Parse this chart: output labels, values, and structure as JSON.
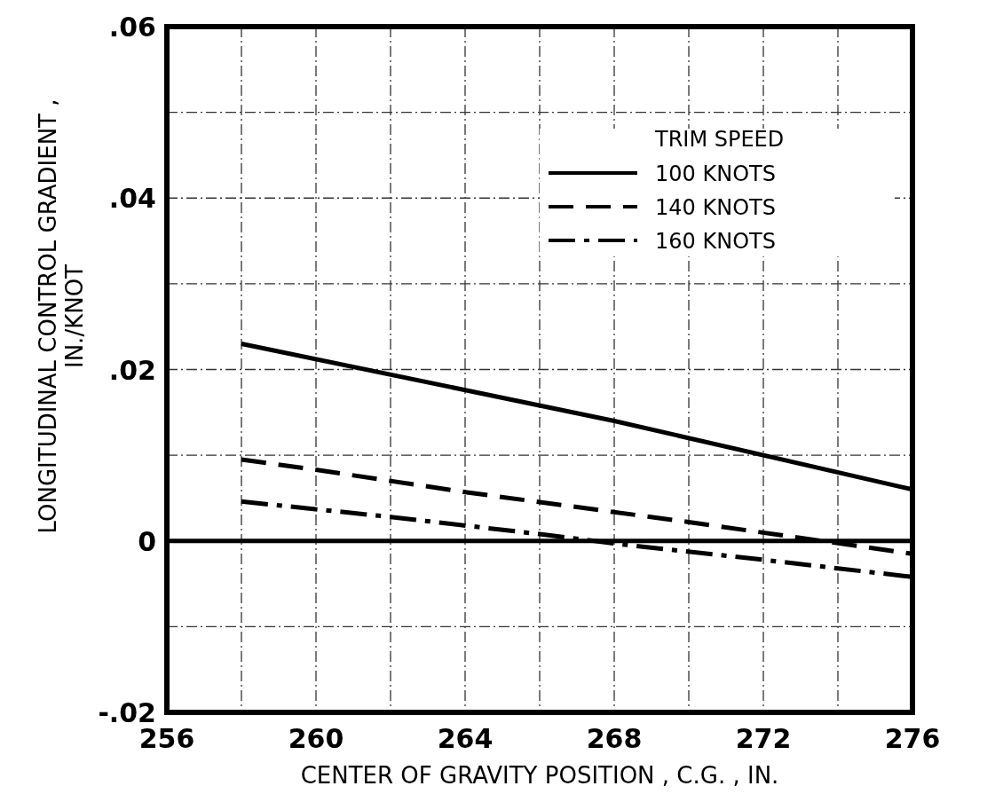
{
  "chart_data": {
    "type": "line",
    "xlabel": "CENTER OF GRAVITY POSITION , C.G. , IN.",
    "ylabel": "LONGITUDINAL CONTROL GRADIENT ,\nIN./KNOT",
    "legend_title": "TRIM SPEED",
    "legend": "top right",
    "grid": true,
    "xlim": [
      256,
      276
    ],
    "xticks": [
      256,
      {
        "value": 258,
        "label": null
      },
      260,
      {
        "value": 262,
        "label": null
      },
      264,
      {
        "value": 266,
        "label": null
      },
      268,
      {
        "value": 270,
        "label": null
      },
      272,
      {
        "value": 274,
        "label": null
      },
      276
    ],
    "ylim": [
      -0.02,
      0.06
    ],
    "yticks": [
      {
        "value": -0.02,
        "label": "-.02"
      },
      {
        "value": -0.01,
        "label": null
      },
      {
        "value": 0,
        "label": "0"
      },
      {
        "value": 0.01,
        "label": null
      },
      {
        "value": 0.02,
        "label": ".02"
      },
      {
        "value": 0.03,
        "label": null
      },
      {
        "value": 0.04,
        "label": ".04"
      },
      {
        "value": 0.05,
        "label": null
      },
      {
        "value": 0.06,
        "label": ".06"
      }
    ],
    "ref_lines": [
      {
        "axis": "y",
        "value": 0,
        "color": "#000000"
      }
    ],
    "series": [
      {
        "name": "100 KNOTS",
        "color": "#000000",
        "line_style": "solid",
        "x": [
          258,
          268,
          276
        ],
        "values": [
          0.023,
          0.014,
          0.006
        ]
      },
      {
        "name": "140 KNOTS",
        "color": "#000000",
        "line_style": "dashed",
        "x": [
          258,
          260,
          264,
          270,
          276
        ],
        "values": [
          0.0095,
          0.0083,
          0.0057,
          0.0022,
          -0.0015
        ]
      },
      {
        "name": "160 KNOTS",
        "color": "#000000",
        "line_style": "dashdot",
        "x": [
          258,
          262,
          266,
          268,
          272,
          276
        ],
        "values": [
          0.0046,
          0.0028,
          0.0008,
          -0.0003,
          -0.0022,
          -0.0042
        ]
      }
    ]
  }
}
